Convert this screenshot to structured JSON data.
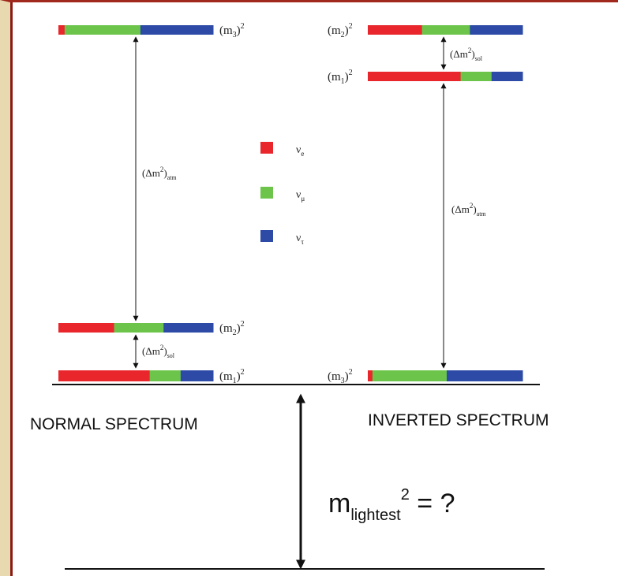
{
  "colors": {
    "nu_e": "#e8262b",
    "nu_mu": "#6cc54a",
    "nu_tau": "#2c4aa6",
    "frame": "#a0281c",
    "background": "#e9d9b1"
  },
  "legend": [
    {
      "symbol": "ν",
      "subscript": "e",
      "color": "#e8262b"
    },
    {
      "symbol": "ν",
      "subscript": "μ",
      "color": "#6cc54a"
    },
    {
      "symbol": "ν",
      "subscript": "τ",
      "color": "#2c4aa6"
    }
  ],
  "normal": {
    "title": "NORMAL SPECTRUM",
    "levels": [
      {
        "label_base": "(m",
        "label_sub": "3",
        "label_tail": ")",
        "label_sup": "2",
        "fractions": [
          0.04,
          0.49,
          0.47
        ]
      },
      {
        "label_base": "(m",
        "label_sub": "2",
        "label_tail": ")",
        "label_sup": "2",
        "fractions": [
          0.36,
          0.32,
          0.32
        ]
      },
      {
        "label_base": "(m",
        "label_sub": "1",
        "label_tail": ")",
        "label_sup": "2",
        "fractions": [
          0.59,
          0.2,
          0.21
        ]
      }
    ],
    "gap_atm": {
      "base": "(Δm",
      "sup": "2",
      "tail": ")",
      "sub": "atm"
    },
    "gap_sol": {
      "base": "(Δm",
      "sup": "2",
      "tail": ")",
      "sub": "sol"
    }
  },
  "inverted": {
    "title": "INVERTED SPECTRUM",
    "levels": [
      {
        "label_base": "(m",
        "label_sub": "2",
        "label_tail": ")",
        "label_sup": "2",
        "fractions": [
          0.35,
          0.31,
          0.34
        ]
      },
      {
        "label_base": "(m",
        "label_sub": "1",
        "label_tail": ")",
        "label_sup": "2",
        "fractions": [
          0.6,
          0.2,
          0.2
        ]
      },
      {
        "label_base": "(m",
        "label_sub": "3",
        "label_tail": ")",
        "label_sup": "2",
        "fractions": [
          0.03,
          0.48,
          0.49
        ]
      }
    ],
    "gap_sol": {
      "base": "(Δm",
      "sup": "2",
      "tail": ")",
      "sub": "sol"
    },
    "gap_atm": {
      "base": "(Δm",
      "sup": "2",
      "tail": ")",
      "sub": "atm"
    }
  },
  "question": {
    "base": "m",
    "sub": "lightest",
    "sup": "2",
    "tail": " = ?"
  }
}
